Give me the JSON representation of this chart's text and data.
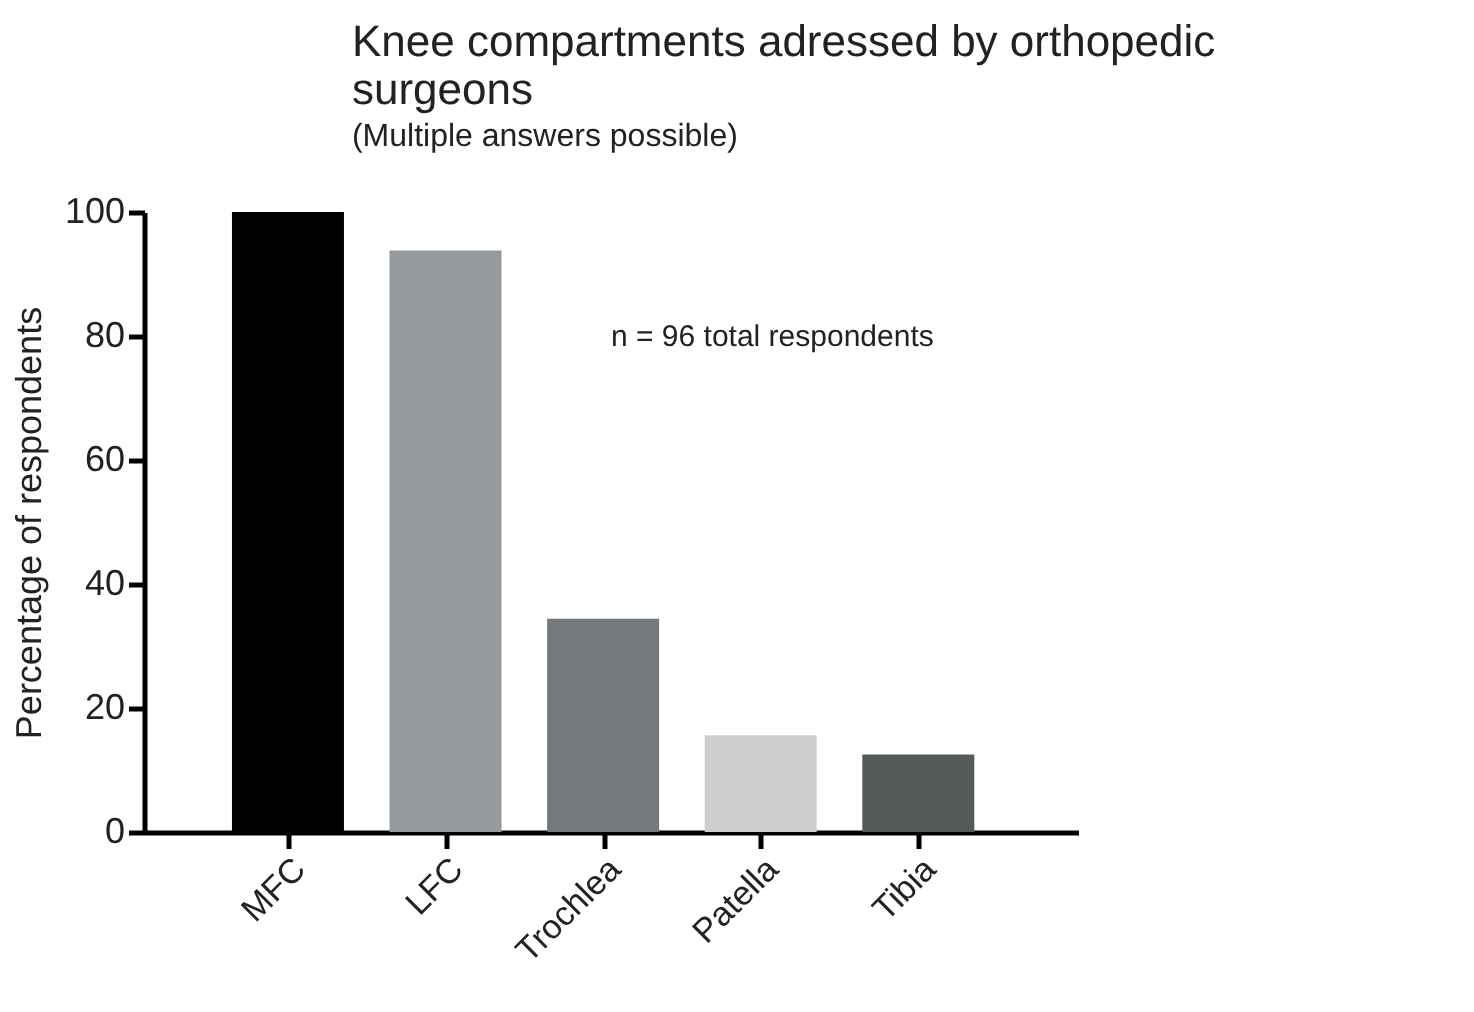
{
  "chart_data": {
    "type": "bar",
    "title": "Knee compartments adressed by orthopedic surgeons",
    "subtitle": "(Multiple answers possible)",
    "ylabel": "Percentage of respondents",
    "categories": [
      "MFC",
      "LFC",
      "Trochlea",
      "Patella",
      "Tibia"
    ],
    "values": [
      100,
      93.8,
      34.4,
      15.6,
      12.5
    ],
    "colors": [
      "#000000",
      "#96999d",
      "#76797c",
      "#cccecd",
      "#575a5b"
    ],
    "ylim": [
      0,
      100
    ],
    "yticks": [
      0,
      20,
      40,
      60,
      80,
      100
    ],
    "grid": false,
    "annotations": [
      "n = 96 total respondents"
    ]
  }
}
